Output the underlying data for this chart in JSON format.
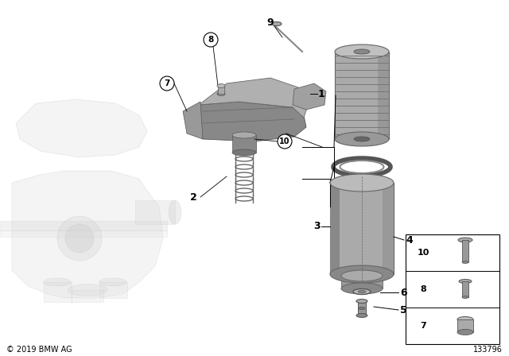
{
  "background_color": "#ffffff",
  "line_color": "#000000",
  "text_color": "#000000",
  "copyright_text": "© 2019 BMW AG",
  "diagram_number": "133796",
  "gray_part": "#a8a8a8",
  "gray_light": "#c8c8c8",
  "gray_dark": "#787878",
  "gray_ghost": "#e0e0e0",
  "gray_mid": "#b8b8b8",
  "figsize": [
    6.4,
    4.48
  ],
  "dpi": 100
}
